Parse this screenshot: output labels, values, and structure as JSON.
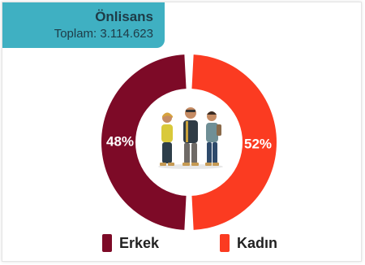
{
  "header": {
    "title": "Önlisans",
    "subtitle": "Toplam: 3.114.623"
  },
  "colors": {
    "header_bg": "#3fb0c2",
    "erkek": "#7d0a27",
    "kadin": "#fb3b21"
  },
  "illustration": "students-group-icon",
  "chart_data": {
    "type": "pie",
    "subtype": "donut",
    "title": "Önlisans",
    "total_label": "Toplam: 3.114.623",
    "categories": [
      "Erkek",
      "Kadın"
    ],
    "values": [
      48,
      52
    ],
    "labels": [
      "48%",
      "52%"
    ],
    "colors": [
      "#7d0a27",
      "#fb3b21"
    ],
    "legend_position": "bottom"
  }
}
